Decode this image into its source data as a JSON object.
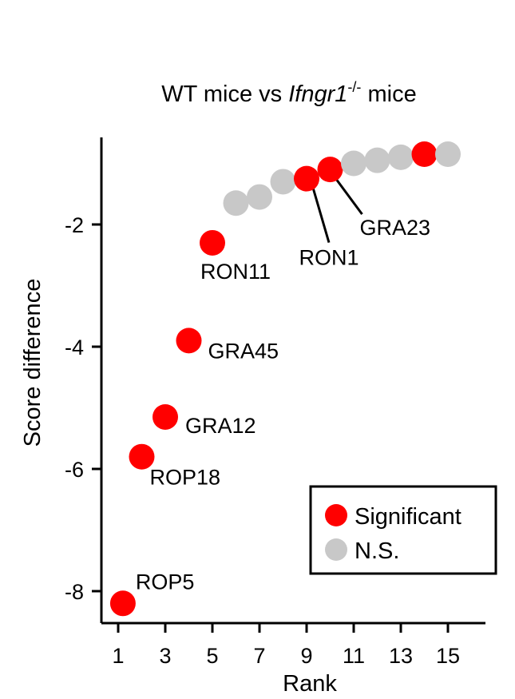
{
  "chart_data": {
    "type": "scatter",
    "title": {
      "prefix": "WT mice vs ",
      "gene": "Ifngr1",
      "superscript": "-/-",
      "suffix": " mice"
    },
    "xlabel": "Rank",
    "ylabel": "Score difference",
    "xlim": [
      0.5,
      16.5
    ],
    "ylim": [
      -8.55,
      -0.4
    ],
    "xticks": [
      1,
      3,
      5,
      7,
      9,
      11,
      13,
      15
    ],
    "xtick_labels": [
      "1",
      "3",
      "5",
      "7",
      "9",
      "11",
      "13",
      "15"
    ],
    "yticks": [
      -8,
      -6,
      -4,
      -2
    ],
    "ytick_labels": [
      "-8",
      "-6",
      "-4",
      "-2"
    ],
    "colors": {
      "significant": "#ff0000",
      "ns": "#c8c8c8"
    },
    "legend": {
      "position": "bottom-right",
      "entries": [
        {
          "label": "Significant",
          "status": "significant"
        },
        {
          "label": "N.S.",
          "status": "ns"
        }
      ]
    },
    "points": [
      {
        "rank": 1.2,
        "score": -8.2,
        "status": "significant",
        "label": "ROP5"
      },
      {
        "rank": 2,
        "score": -5.8,
        "status": "significant",
        "label": "ROP18"
      },
      {
        "rank": 3,
        "score": -5.15,
        "status": "significant",
        "label": "GRA12"
      },
      {
        "rank": 4,
        "score": -3.9,
        "status": "significant",
        "label": "GRA45"
      },
      {
        "rank": 5,
        "score": -2.3,
        "status": "significant",
        "label": "RON11"
      },
      {
        "rank": 6,
        "score": -1.65,
        "status": "ns",
        "label": ""
      },
      {
        "rank": 7,
        "score": -1.55,
        "status": "ns",
        "label": ""
      },
      {
        "rank": 8,
        "score": -1.3,
        "status": "ns",
        "label": ""
      },
      {
        "rank": 9,
        "score": -1.25,
        "status": "significant",
        "label": "RON1"
      },
      {
        "rank": 10,
        "score": -1.1,
        "status": "significant",
        "label": "GRA23"
      },
      {
        "rank": 11,
        "score": -1.0,
        "status": "ns",
        "label": ""
      },
      {
        "rank": 12,
        "score": -0.95,
        "status": "ns",
        "label": ""
      },
      {
        "rank": 13,
        "score": -0.9,
        "status": "ns",
        "label": ""
      },
      {
        "rank": 14,
        "score": -0.85,
        "status": "significant",
        "label": ""
      },
      {
        "rank": 15,
        "score": -0.85,
        "status": "ns",
        "label": ""
      }
    ]
  }
}
